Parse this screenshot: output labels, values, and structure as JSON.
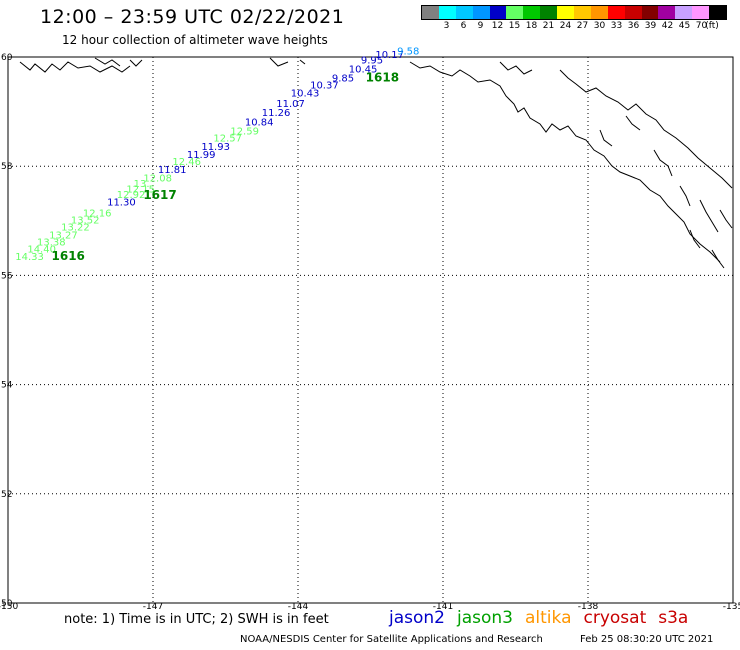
{
  "header": {
    "title": "12:00 – 23:59 UTC 02/22/2021",
    "subtitle": "12 hour collection of altimeter wave heights"
  },
  "legend": {
    "unit": "(ft)",
    "items": [
      {
        "label": "",
        "color": "#808080"
      },
      {
        "label": "3",
        "color": "#00ffff"
      },
      {
        "label": "6",
        "color": "#00c8ff"
      },
      {
        "label": "9",
        "color": "#0096ff"
      },
      {
        "label": "12",
        "color": "#0000c8"
      },
      {
        "label": "15",
        "color": "#64ff64"
      },
      {
        "label": "18",
        "color": "#00c800"
      },
      {
        "label": "21",
        "color": "#008200"
      },
      {
        "label": "24",
        "color": "#ffff00"
      },
      {
        "label": "27",
        "color": "#ffc800"
      },
      {
        "label": "30",
        "color": "#ff9600"
      },
      {
        "label": "33",
        "color": "#ff0000"
      },
      {
        "label": "36",
        "color": "#c80000"
      },
      {
        "label": "39",
        "color": "#820000"
      },
      {
        "label": "42",
        "color": "#a000a0"
      },
      {
        "label": "45",
        "color": "#c8a0ff"
      },
      {
        "label": "70",
        "color": "#ff96ff"
      },
      {
        "label": "",
        "color": "#000000"
      }
    ]
  },
  "map": {
    "lon_ticks": [
      "-150",
      "-147",
      "-144",
      "-141",
      "-138",
      "-135"
    ],
    "lat_ticks": [
      "60",
      "58",
      "56",
      "54",
      "52",
      "50"
    ],
    "lon_range": [
      -150,
      -135
    ],
    "lat_range": [
      50,
      60
    ]
  },
  "observations": [
    {
      "text": "14.33",
      "lon": -149.85,
      "lat": 56.28,
      "color": "#64ff64"
    },
    {
      "text": "14.40",
      "lon": -149.6,
      "lat": 56.42,
      "color": "#64ff64"
    },
    {
      "text": "13.38",
      "lon": -149.4,
      "lat": 56.55,
      "color": "#64ff64"
    },
    {
      "text": "13.27",
      "lon": -149.15,
      "lat": 56.68,
      "color": "#64ff64"
    },
    {
      "text": "13.22",
      "lon": -148.9,
      "lat": 56.82,
      "color": "#64ff64"
    },
    {
      "text": "13.52",
      "lon": -148.7,
      "lat": 56.95,
      "color": "#64ff64"
    },
    {
      "text": "12.16",
      "lon": -148.45,
      "lat": 57.08,
      "color": "#64ff64"
    },
    {
      "text": "11.30",
      "lon": -147.95,
      "lat": 57.28,
      "color": "#0000c8"
    },
    {
      "text": "12.92",
      "lon": -147.75,
      "lat": 57.42,
      "color": "#64ff64"
    },
    {
      "text": "12.15",
      "lon": -147.55,
      "lat": 57.52,
      "color": "#64ff64"
    },
    {
      "text": "13.",
      "lon": -147.4,
      "lat": 57.62,
      "color": "#64ff64"
    },
    {
      "text": "12.08",
      "lon": -147.2,
      "lat": 57.72,
      "color": "#64ff64"
    },
    {
      "text": "11.81",
      "lon": -146.9,
      "lat": 57.88,
      "color": "#0000c8"
    },
    {
      "text": "12.46",
      "lon": -146.6,
      "lat": 58.02,
      "color": "#64ff64"
    },
    {
      "text": "11.99",
      "lon": -146.3,
      "lat": 58.15,
      "color": "#0000c8"
    },
    {
      "text": "11.93",
      "lon": -146.0,
      "lat": 58.3,
      "color": "#0000c8"
    },
    {
      "text": "12.57",
      "lon": -145.75,
      "lat": 58.45,
      "color": "#64ff64"
    },
    {
      "text": "12.59",
      "lon": -145.4,
      "lat": 58.58,
      "color": "#64ff64"
    },
    {
      "text": "10.84",
      "lon": -145.1,
      "lat": 58.75,
      "color": "#0000c8"
    },
    {
      "text": "11.26",
      "lon": -144.75,
      "lat": 58.92,
      "color": "#0000c8"
    },
    {
      "text": "11.07",
      "lon": -144.45,
      "lat": 59.08,
      "color": "#0000c8"
    },
    {
      "text": "10.43",
      "lon": -144.15,
      "lat": 59.28,
      "color": "#0000c8"
    },
    {
      "text": "10.37",
      "lon": -143.75,
      "lat": 59.42,
      "color": "#0000c8"
    },
    {
      "text": "9.85",
      "lon": -143.3,
      "lat": 59.55,
      "color": "#0000c8"
    },
    {
      "text": "10.45",
      "lon": -142.95,
      "lat": 59.72,
      "color": "#0000c8"
    },
    {
      "text": "9.95",
      "lon": -142.7,
      "lat": 59.88,
      "color": "#0000c8"
    },
    {
      "text": "10.17",
      "lon": -142.4,
      "lat": 59.98,
      "color": "#0000c8"
    },
    {
      "text": "9.58",
      "lon": -141.95,
      "lat": 60.05,
      "color": "#0096ff"
    }
  ],
  "time_labels": [
    {
      "text": "1616",
      "lon": -149.1,
      "lat": 56.28,
      "color": "#008200"
    },
    {
      "text": "1617",
      "lon": -147.2,
      "lat": 57.4,
      "color": "#008200"
    },
    {
      "text": "1618",
      "lon": -142.6,
      "lat": 59.55,
      "color": "#008200"
    }
  ],
  "footer": {
    "note": "note: 1) Time is in UTC; 2) SWH is in feet",
    "satellites": [
      {
        "name": "jason2",
        "color": "#0000c8"
      },
      {
        "name": "jason3",
        "color": "#00a000"
      },
      {
        "name": "altika",
        "color": "#ff9600"
      },
      {
        "name": "cryosat",
        "color": "#c80000"
      },
      {
        "name": "s3a",
        "color": "#c80000"
      }
    ],
    "credit": "NOAA/NESDIS Center for Satellite Applications and Research",
    "timestamp": "Feb 25 08:30:20 UTC 2021"
  }
}
